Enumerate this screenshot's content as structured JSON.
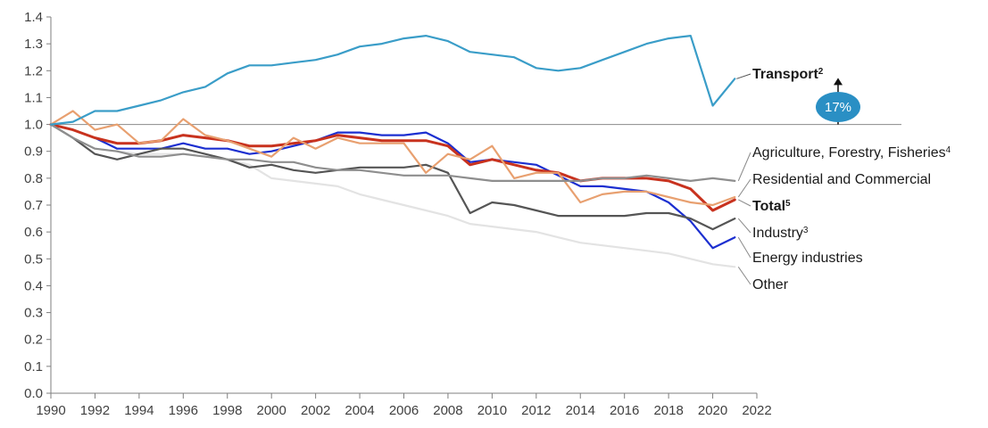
{
  "chart_data": {
    "type": "line",
    "title": "",
    "xlabel": "",
    "ylabel": "",
    "xlim": [
      1990,
      2022
    ],
    "ylim": [
      0,
      1.4
    ],
    "x_ticks": [
      "1990",
      "1992",
      "1994",
      "1996",
      "1998",
      "2000",
      "2002",
      "2004",
      "2006",
      "2008",
      "2010",
      "2012",
      "2014",
      "2016",
      "2018",
      "2020",
      "2022"
    ],
    "y_ticks": [
      "0.0",
      "0.1",
      "0.2",
      "0.3",
      "0.4",
      "0.5",
      "0.6",
      "0.7",
      "0.8",
      "0.9",
      "1.0",
      "1.1",
      "1.2",
      "1.3",
      "1.4"
    ],
    "reference_line": 1.0,
    "grid": false,
    "x": [
      1990,
      1991,
      1992,
      1993,
      1994,
      1995,
      1996,
      1997,
      1998,
      1999,
      2000,
      2001,
      2002,
      2003,
      2004,
      2005,
      2006,
      2007,
      2008,
      2009,
      2010,
      2011,
      2012,
      2013,
      2014,
      2015,
      2016,
      2017,
      2018,
      2019,
      2020,
      2021
    ],
    "series": [
      {
        "name": "Transport",
        "sup": "2",
        "color": "#3a9dc8",
        "values": [
          1.0,
          1.01,
          1.05,
          1.05,
          1.07,
          1.09,
          1.12,
          1.14,
          1.19,
          1.22,
          1.22,
          1.23,
          1.24,
          1.26,
          1.29,
          1.3,
          1.32,
          1.33,
          1.31,
          1.27,
          1.26,
          1.25,
          1.21,
          1.2,
          1.21,
          1.24,
          1.27,
          1.3,
          1.32,
          1.33,
          1.07,
          1.17
        ]
      },
      {
        "name": "Agriculture, Forestry, Fisheries",
        "sup": "4",
        "color": "#8e8e8e",
        "values": [
          1.0,
          0.95,
          0.91,
          0.9,
          0.88,
          0.88,
          0.89,
          0.88,
          0.87,
          0.87,
          0.86,
          0.86,
          0.84,
          0.83,
          0.83,
          0.82,
          0.81,
          0.81,
          0.81,
          0.8,
          0.79,
          0.79,
          0.79,
          0.79,
          0.79,
          0.8,
          0.8,
          0.81,
          0.8,
          0.79,
          0.8,
          0.79
        ]
      },
      {
        "name": "Residential and Commercial",
        "sup": "",
        "color": "#e8a070",
        "values": [
          1.0,
          1.05,
          0.98,
          1.0,
          0.93,
          0.94,
          1.02,
          0.96,
          0.94,
          0.91,
          0.88,
          0.95,
          0.91,
          0.95,
          0.93,
          0.93,
          0.93,
          0.82,
          0.89,
          0.87,
          0.92,
          0.8,
          0.82,
          0.82,
          0.71,
          0.74,
          0.75,
          0.75,
          0.73,
          0.71,
          0.7,
          0.73
        ]
      },
      {
        "name": "Total",
        "sup": "5",
        "color": "#c8321e",
        "bold": true,
        "values": [
          1.0,
          0.98,
          0.95,
          0.93,
          0.93,
          0.94,
          0.96,
          0.95,
          0.94,
          0.92,
          0.92,
          0.93,
          0.94,
          0.96,
          0.95,
          0.94,
          0.94,
          0.94,
          0.92,
          0.85,
          0.87,
          0.85,
          0.83,
          0.82,
          0.79,
          0.8,
          0.8,
          0.8,
          0.79,
          0.76,
          0.68,
          0.72
        ]
      },
      {
        "name": "Industry",
        "sup": "3",
        "color": "#555555",
        "values": [
          1.0,
          0.95,
          0.89,
          0.87,
          0.89,
          0.91,
          0.91,
          0.89,
          0.87,
          0.84,
          0.85,
          0.83,
          0.82,
          0.83,
          0.84,
          0.84,
          0.84,
          0.85,
          0.82,
          0.67,
          0.71,
          0.7,
          0.68,
          0.66,
          0.66,
          0.66,
          0.66,
          0.67,
          0.67,
          0.65,
          0.61,
          0.65
        ]
      },
      {
        "name": "Energy industries",
        "sup": "",
        "color": "#1c2fd0",
        "values": [
          1.0,
          0.98,
          0.95,
          0.91,
          0.91,
          0.91,
          0.93,
          0.91,
          0.91,
          0.89,
          0.9,
          0.92,
          0.94,
          0.97,
          0.97,
          0.96,
          0.96,
          0.97,
          0.93,
          0.86,
          0.87,
          0.86,
          0.85,
          0.81,
          0.77,
          0.77,
          0.76,
          0.75,
          0.71,
          0.64,
          0.54,
          0.58
        ]
      },
      {
        "name": "Other",
        "sup": "",
        "color": "#e3e3e3",
        "values": [
          1.0,
          0.95,
          0.91,
          0.9,
          0.89,
          0.89,
          0.89,
          0.88,
          0.87,
          0.85,
          0.8,
          0.79,
          0.78,
          0.77,
          0.74,
          0.72,
          0.7,
          0.68,
          0.66,
          0.63,
          0.62,
          0.61,
          0.6,
          0.58,
          0.56,
          0.55,
          0.54,
          0.53,
          0.52,
          0.5,
          0.48,
          0.47
        ]
      }
    ],
    "annotation": {
      "text": "17%",
      "color": "#2a8fc4"
    }
  }
}
